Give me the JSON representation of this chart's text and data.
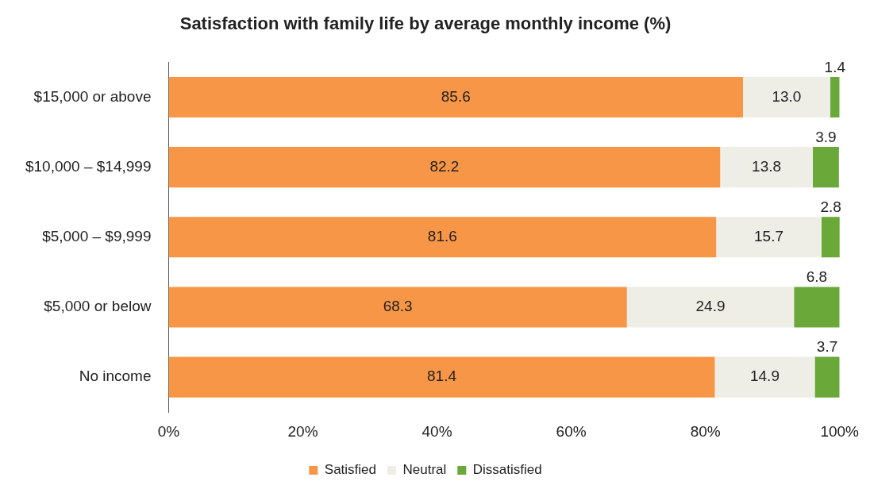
{
  "chart_data": {
    "type": "bar",
    "title": "Satisfaction with family life by average monthly income (%)",
    "orientation": "horizontal",
    "stacked": true,
    "categories": [
      "$15,000 or above",
      "$10,000 – $14,999",
      "$5,000 – $9,999",
      "$5,000 or below",
      "No income"
    ],
    "series": [
      {
        "name": "Satisfied",
        "color": "#f79646",
        "values": [
          85.6,
          82.2,
          81.6,
          68.3,
          81.4
        ],
        "value_labels": [
          "85.6",
          "82.2",
          "81.6",
          "68.3",
          "81.4"
        ]
      },
      {
        "name": "Neutral",
        "color": "#eeeee6",
        "values": [
          13.0,
          13.8,
          15.7,
          24.9,
          14.9
        ],
        "value_labels": [
          "13.0",
          "13.8",
          "15.7",
          "24.9",
          "14.9"
        ]
      },
      {
        "name": "Dissatisfied",
        "color": "#6aa83a",
        "values": [
          1.4,
          3.9,
          2.8,
          6.8,
          3.7
        ],
        "value_labels": [
          "1.4",
          "3.9",
          "2.8",
          "6.8",
          "3.7"
        ]
      }
    ],
    "xlim": [
      0,
      100
    ],
    "xticks": [
      {
        "value": 0,
        "label": "0%"
      },
      {
        "value": 20,
        "label": "20%"
      },
      {
        "value": 40,
        "label": "40%"
      },
      {
        "value": 60,
        "label": "60%"
      },
      {
        "value": 80,
        "label": "80%"
      },
      {
        "value": 100,
        "label": "100%"
      }
    ],
    "grid": false,
    "legend": "bottom"
  }
}
